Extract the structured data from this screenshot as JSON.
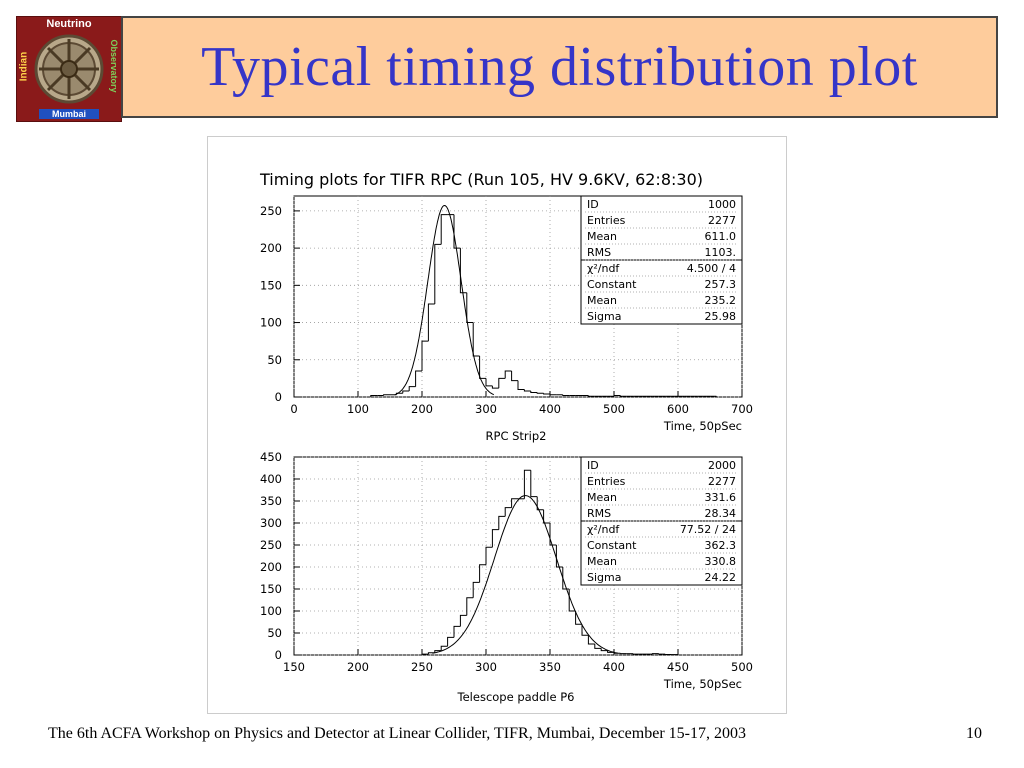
{
  "slide": {
    "title": "Typical timing distribution plot",
    "footer": "The 6th ACFA Workshop on Physics and Detector at Linear Collider, TIFR, Mumbai, December 15-17, 2003",
    "page_number": "10"
  },
  "logo": {
    "top": "Neutrino",
    "left": "Indian",
    "right": "Observatory",
    "bottom": "Mumbai"
  },
  "colors": {
    "title_text": "#3535c8",
    "title_bg": "#fecc9c",
    "logo_bg": "#8a1a1a"
  },
  "figure_title": "Timing plots for TIFR RPC (Run 105, HV 9.6KV, 62:8:30)",
  "chart_data": [
    {
      "type": "histogram",
      "id": "1000",
      "xlabel": "Time, 50pSec",
      "subtitle": "RPC Strip2",
      "xlim": [
        0,
        700
      ],
      "ylim": [
        0,
        270
      ],
      "xticks": [
        0,
        100,
        200,
        300,
        400,
        500,
        600,
        700
      ],
      "yticks": [
        0,
        50,
        100,
        150,
        200,
        250
      ],
      "bin_width": 10,
      "bins": [
        {
          "x": 120,
          "y": 2
        },
        {
          "x": 130,
          "y": 2
        },
        {
          "x": 140,
          "y": 3
        },
        {
          "x": 150,
          "y": 3
        },
        {
          "x": 160,
          "y": 5
        },
        {
          "x": 170,
          "y": 8
        },
        {
          "x": 180,
          "y": 14
        },
        {
          "x": 190,
          "y": 35
        },
        {
          "x": 200,
          "y": 75
        },
        {
          "x": 210,
          "y": 125
        },
        {
          "x": 220,
          "y": 205
        },
        {
          "x": 230,
          "y": 245
        },
        {
          "x": 240,
          "y": 245
        },
        {
          "x": 250,
          "y": 200
        },
        {
          "x": 260,
          "y": 140
        },
        {
          "x": 270,
          "y": 100
        },
        {
          "x": 280,
          "y": 55
        },
        {
          "x": 290,
          "y": 25
        },
        {
          "x": 300,
          "y": 15
        },
        {
          "x": 310,
          "y": 12
        },
        {
          "x": 320,
          "y": 25
        },
        {
          "x": 330,
          "y": 35
        },
        {
          "x": 340,
          "y": 22
        },
        {
          "x": 350,
          "y": 10
        },
        {
          "x": 360,
          "y": 8
        },
        {
          "x": 370,
          "y": 6
        },
        {
          "x": 380,
          "y": 5
        },
        {
          "x": 390,
          "y": 4
        },
        {
          "x": 400,
          "y": 3
        },
        {
          "x": 410,
          "y": 3
        },
        {
          "x": 420,
          "y": 2
        },
        {
          "x": 430,
          "y": 2
        },
        {
          "x": 440,
          "y": 2
        },
        {
          "x": 450,
          "y": 2
        },
        {
          "x": 460,
          "y": 1
        },
        {
          "x": 470,
          "y": 1
        },
        {
          "x": 480,
          "y": 1
        },
        {
          "x": 490,
          "y": 1
        },
        {
          "x": 500,
          "y": 2
        },
        {
          "x": 510,
          "y": 1
        },
        {
          "x": 520,
          "y": 1
        },
        {
          "x": 530,
          "y": 1
        },
        {
          "x": 540,
          "y": 1
        },
        {
          "x": 550,
          "y": 1
        },
        {
          "x": 560,
          "y": 1
        },
        {
          "x": 570,
          "y": 1
        },
        {
          "x": 580,
          "y": 1
        },
        {
          "x": 590,
          "y": 1
        },
        {
          "x": 600,
          "y": 1
        },
        {
          "x": 610,
          "y": 1
        },
        {
          "x": 620,
          "y": 1
        },
        {
          "x": 630,
          "y": 1
        },
        {
          "x": 640,
          "y": 1
        },
        {
          "x": 650,
          "y": 1
        }
      ],
      "fit": {
        "type": "gaussian",
        "constant": 257.3,
        "mean": 235.2,
        "sigma": 25.98
      },
      "stats": [
        {
          "label": "ID",
          "value": "1000"
        },
        {
          "label": "Entries",
          "value": "2277"
        },
        {
          "label": "Mean",
          "value": "611.0"
        },
        {
          "label": "RMS",
          "value": "1103."
        },
        {
          "label": "χ²/ndf",
          "value": "4.500   /    4"
        },
        {
          "label": "Constant",
          "value": "257.3"
        },
        {
          "label": "Mean",
          "value": "235.2"
        },
        {
          "label": "Sigma",
          "value": "25.98"
        }
      ]
    },
    {
      "type": "histogram",
      "id": "2000",
      "xlabel": "Time, 50pSec",
      "subtitle": "Telescope paddle P6",
      "xlim": [
        150,
        500
      ],
      "ylim": [
        0,
        450
      ],
      "xticks": [
        150,
        200,
        250,
        300,
        350,
        400,
        450,
        500
      ],
      "yticks": [
        0,
        50,
        100,
        150,
        200,
        250,
        300,
        350,
        400,
        450
      ],
      "bin_width": 5,
      "bins": [
        {
          "x": 250,
          "y": 2
        },
        {
          "x": 255,
          "y": 5
        },
        {
          "x": 260,
          "y": 10
        },
        {
          "x": 265,
          "y": 20
        },
        {
          "x": 270,
          "y": 40
        },
        {
          "x": 275,
          "y": 65
        },
        {
          "x": 280,
          "y": 90
        },
        {
          "x": 285,
          "y": 130
        },
        {
          "x": 290,
          "y": 165
        },
        {
          "x": 295,
          "y": 205
        },
        {
          "x": 300,
          "y": 245
        },
        {
          "x": 305,
          "y": 285
        },
        {
          "x": 310,
          "y": 315
        },
        {
          "x": 315,
          "y": 335
        },
        {
          "x": 320,
          "y": 355
        },
        {
          "x": 325,
          "y": 355
        },
        {
          "x": 330,
          "y": 420
        },
        {
          "x": 335,
          "y": 360
        },
        {
          "x": 340,
          "y": 330
        },
        {
          "x": 345,
          "y": 300
        },
        {
          "x": 350,
          "y": 250
        },
        {
          "x": 355,
          "y": 200
        },
        {
          "x": 360,
          "y": 150
        },
        {
          "x": 365,
          "y": 100
        },
        {
          "x": 370,
          "y": 70
        },
        {
          "x": 375,
          "y": 45
        },
        {
          "x": 380,
          "y": 25
        },
        {
          "x": 385,
          "y": 15
        },
        {
          "x": 390,
          "y": 10
        },
        {
          "x": 395,
          "y": 6
        },
        {
          "x": 400,
          "y": 4
        },
        {
          "x": 405,
          "y": 3
        },
        {
          "x": 410,
          "y": 3
        },
        {
          "x": 415,
          "y": 2
        },
        {
          "x": 420,
          "y": 2
        },
        {
          "x": 425,
          "y": 2
        },
        {
          "x": 430,
          "y": 3
        },
        {
          "x": 435,
          "y": 2
        },
        {
          "x": 440,
          "y": 1
        },
        {
          "x": 445,
          "y": 1
        }
      ],
      "fit": {
        "type": "gaussian",
        "constant": 362.3,
        "mean": 330.8,
        "sigma": 24.22
      },
      "stats": [
        {
          "label": "ID",
          "value": "2000"
        },
        {
          "label": "Entries",
          "value": "2277"
        },
        {
          "label": "Mean",
          "value": "331.6"
        },
        {
          "label": "RMS",
          "value": "28.34"
        },
        {
          "label": "χ²/ndf",
          "value": "77.52   /   24"
        },
        {
          "label": "Constant",
          "value": "362.3"
        },
        {
          "label": "Mean",
          "value": "330.8"
        },
        {
          "label": "Sigma",
          "value": "24.22"
        }
      ]
    }
  ]
}
